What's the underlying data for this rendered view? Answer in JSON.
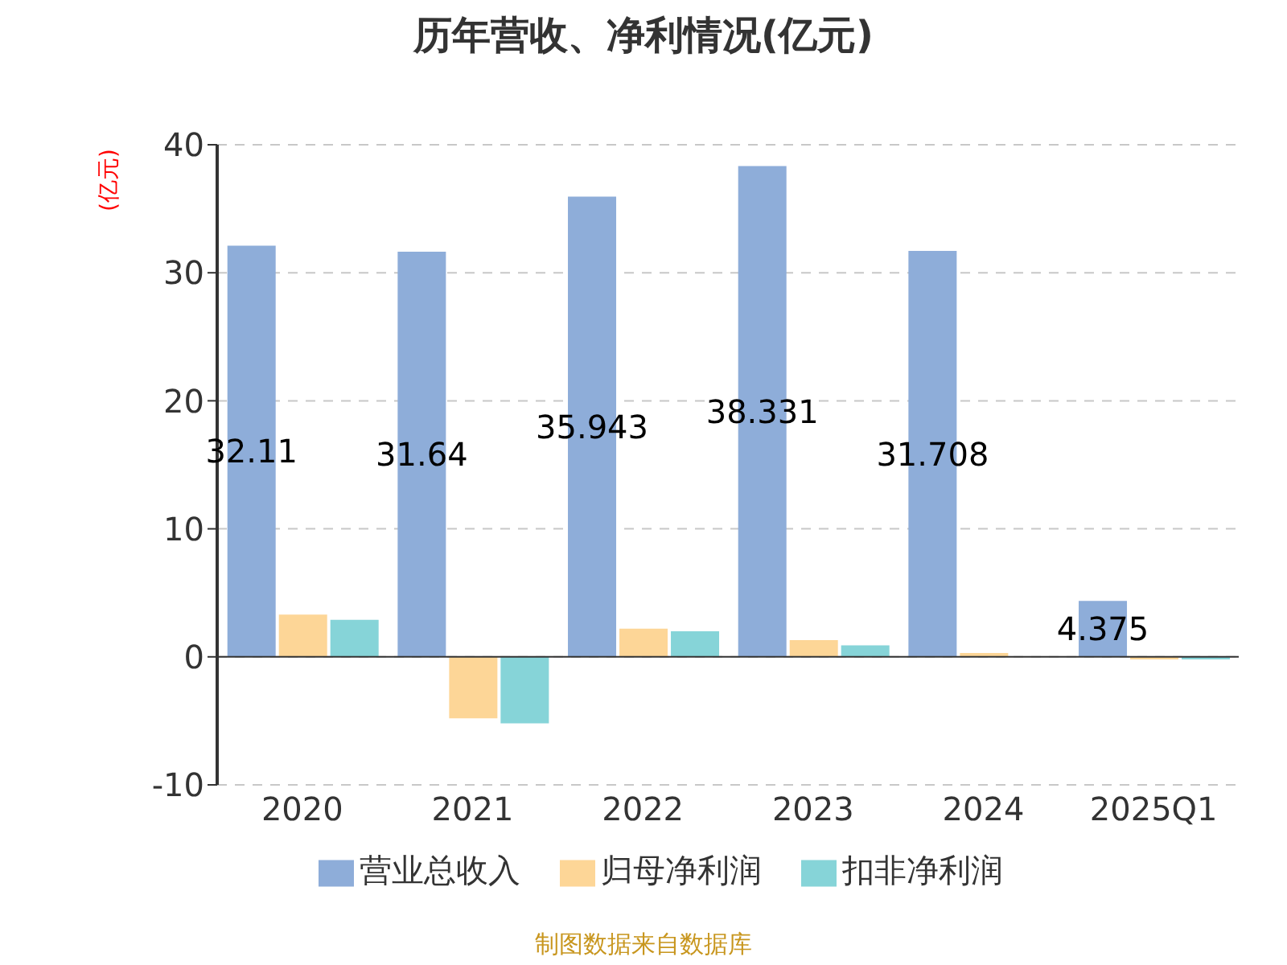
{
  "chart_data": {
    "type": "bar",
    "title": "历年营收、净利情况(亿元)",
    "ylabel": "(亿元)",
    "categories": [
      "2020",
      "2021",
      "2022",
      "2023",
      "2024",
      "2025Q1"
    ],
    "series": [
      {
        "name": "营业总收入",
        "color": "#8eadd9",
        "values": [
          32.11,
          31.64,
          35.943,
          38.331,
          31.708,
          4.375
        ],
        "value_labels": [
          "32.11",
          "31.64",
          "35.943",
          "38.331",
          "31.708",
          "4.375"
        ]
      },
      {
        "name": "归母净利润",
        "color": "#fdd697",
        "values": [
          3.3,
          -4.8,
          2.2,
          1.3,
          0.3,
          -0.2
        ]
      },
      {
        "name": "扣非净利润",
        "color": "#86d4d8",
        "values": [
          2.9,
          -5.2,
          2.0,
          0.9,
          0,
          -0.2
        ]
      }
    ],
    "ylim": [
      -10,
      40
    ],
    "yticks": [
      -10,
      0,
      10,
      20,
      30,
      40
    ],
    "grid": "y",
    "legend": "bottom",
    "annotations": [
      "制图数据来自数据库"
    ]
  }
}
